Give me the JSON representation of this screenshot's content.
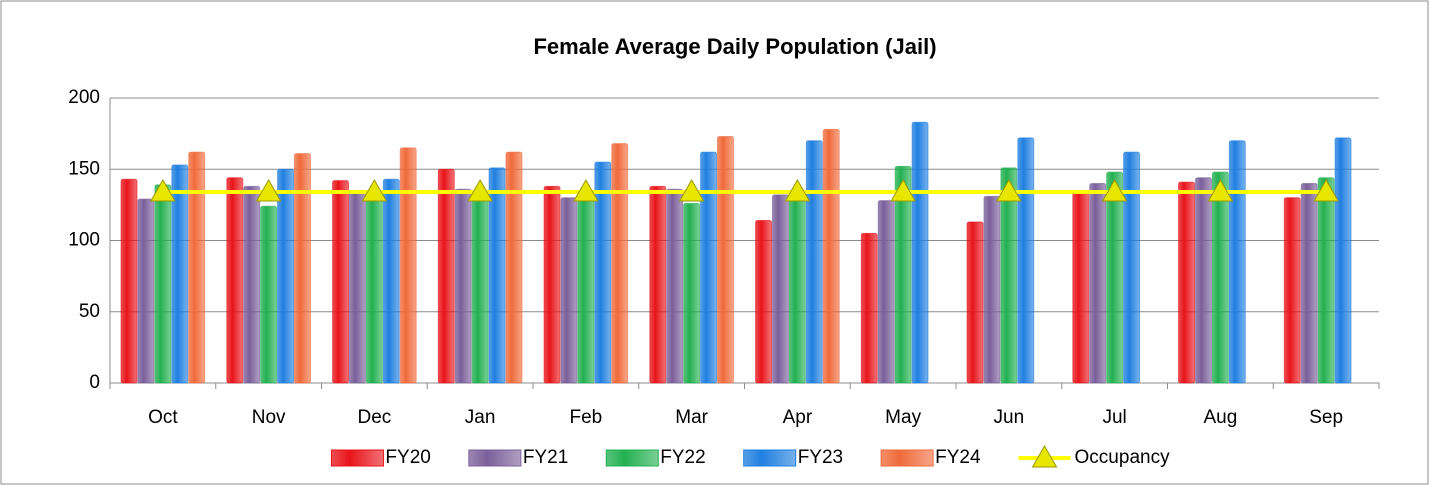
{
  "chart_data": {
    "type": "bar",
    "title": "Female Average Daily Population (Jail)",
    "categories": [
      "Oct",
      "Nov",
      "Dec",
      "Jan",
      "Feb",
      "Mar",
      "Apr",
      "May",
      "Jun",
      "Jul",
      "Aug",
      "Sep"
    ],
    "series": [
      {
        "name": "FY20",
        "color": "#e8141a",
        "values": [
          143,
          144,
          142,
          150,
          138,
          138,
          114,
          105,
          113,
          133,
          141,
          130
        ]
      },
      {
        "name": "FY21",
        "color": "#7a5f9a",
        "values": [
          129,
          138,
          135,
          136,
          130,
          136,
          132,
          128,
          131,
          140,
          144,
          140
        ]
      },
      {
        "name": "FY22",
        "color": "#22b050",
        "values": [
          139,
          124,
          128,
          134,
          128,
          126,
          133,
          152,
          151,
          148,
          148,
          144
        ]
      },
      {
        "name": "FY23",
        "color": "#1f7fe0",
        "values": [
          153,
          150,
          143,
          151,
          155,
          162,
          170,
          183,
          172,
          162,
          170,
          172
        ]
      },
      {
        "name": "FY24",
        "color": "#f06a3a",
        "values": [
          162,
          161,
          165,
          162,
          168,
          173,
          178,
          null,
          null,
          null,
          null,
          null
        ]
      },
      {
        "name": "Occupancy",
        "color": "#ffff00",
        "type": "line",
        "values": [
          134,
          134,
          134,
          134,
          134,
          134,
          134,
          134,
          134,
          134,
          134,
          134
        ]
      }
    ],
    "ylim": [
      0,
      200
    ],
    "yticks": [
      0,
      50,
      100,
      150,
      200
    ],
    "grid": true,
    "legend": "bottom"
  }
}
